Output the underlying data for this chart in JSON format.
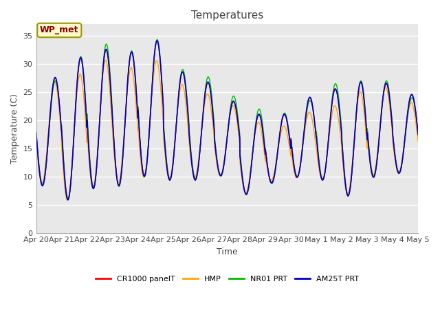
{
  "title": "Temperatures",
  "ylabel": "Temperature (C)",
  "xlabel": "Time",
  "annotation": "WP_met",
  "ylim": [
    0,
    37
  ],
  "yticks": [
    0,
    5,
    10,
    15,
    20,
    25,
    30,
    35
  ],
  "fig_bg_color": "#ffffff",
  "plot_bg_color": "#e8e8e8",
  "legend": [
    {
      "label": "CR1000 panelT",
      "color": "#ff0000"
    },
    {
      "label": "HMP",
      "color": "#ffa500"
    },
    {
      "label": "NR01 PRT",
      "color": "#00bb00"
    },
    {
      "label": "AM25T PRT",
      "color": "#0000cc"
    }
  ],
  "x_tick_labels": [
    "Apr 20",
    "Apr 21",
    "Apr 22",
    "Apr 23",
    "Apr 24",
    "Apr 25",
    "Apr 26",
    "Apr 27",
    "Apr 28",
    "Apr 29",
    "Apr 30",
    "May 1",
    "May 2",
    "May 3",
    "May 4",
    "May 5"
  ],
  "title_fontsize": 11,
  "axis_fontsize": 9,
  "tick_fontsize": 8,
  "figsize": [
    6.4,
    4.8
  ],
  "dpi": 100
}
